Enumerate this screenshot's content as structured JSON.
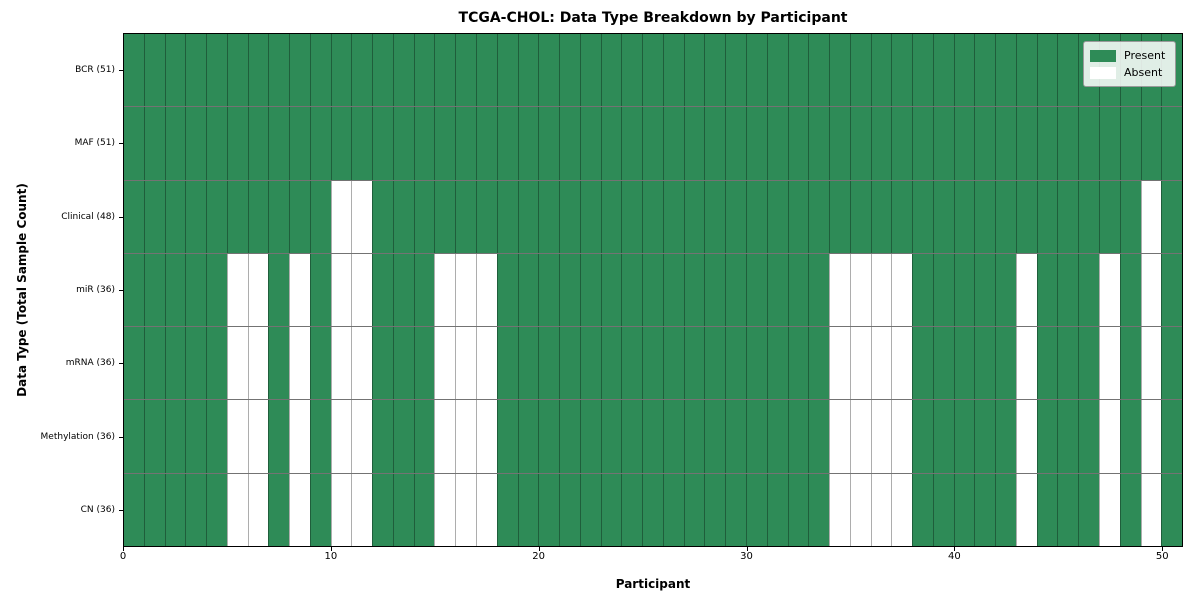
{
  "title": "TCGA-CHOL: Data Type Breakdown by Participant",
  "x_axis": {
    "label": "Participant",
    "tick_labels": [
      "0",
      "10",
      "20",
      "30",
      "40",
      "50"
    ],
    "tick_values": [
      0,
      10,
      20,
      30,
      40,
      50
    ]
  },
  "y_axis": {
    "label": "Data Type (Total Sample Count)"
  },
  "legend": [
    {
      "label": "Present",
      "color": "#2E8B57"
    },
    {
      "label": "Absent",
      "color": "#FFFFFF"
    }
  ],
  "chart_data": {
    "type": "heatmap",
    "title": "TCGA-CHOL: Data Type Breakdown by Participant",
    "xlabel": "Participant",
    "ylabel": "Data Type (Total Sample Count)",
    "n_participants": 51,
    "xlim": [
      0,
      51
    ],
    "grid": true,
    "legend_position": "upper right",
    "colors": {
      "present": "#2E8B57",
      "absent": "#FFFFFF"
    },
    "rows": [
      {
        "label": "BCR (51)",
        "data_type": "BCR",
        "present_count": 51,
        "absent_participants": []
      },
      {
        "label": "MAF (51)",
        "data_type": "MAF",
        "present_count": 51,
        "absent_participants": []
      },
      {
        "label": "Clinical (48)",
        "data_type": "Clinical",
        "present_count": 48,
        "absent_participants": [
          10,
          11,
          49
        ]
      },
      {
        "label": "miR (36)",
        "data_type": "miR",
        "present_count": 36,
        "absent_participants": [
          5,
          6,
          8,
          10,
          11,
          15,
          16,
          17,
          34,
          35,
          36,
          37,
          43,
          47,
          49
        ]
      },
      {
        "label": "mRNA (36)",
        "data_type": "mRNA",
        "present_count": 36,
        "absent_participants": [
          5,
          6,
          8,
          10,
          11,
          15,
          16,
          17,
          34,
          35,
          36,
          37,
          43,
          47,
          49
        ]
      },
      {
        "label": "Methylation (36)",
        "data_type": "Methylation",
        "present_count": 36,
        "absent_participants": [
          5,
          6,
          8,
          10,
          11,
          15,
          16,
          17,
          34,
          35,
          36,
          37,
          43,
          47,
          49
        ]
      },
      {
        "label": "CN (36)",
        "data_type": "CN",
        "present_count": 36,
        "absent_participants": [
          5,
          6,
          8,
          10,
          11,
          15,
          16,
          17,
          34,
          35,
          36,
          37,
          43,
          47,
          49
        ]
      }
    ]
  }
}
